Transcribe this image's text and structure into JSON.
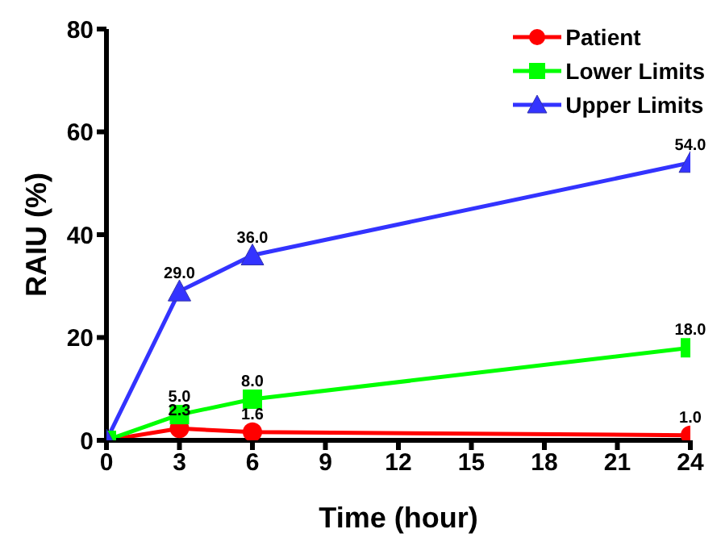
{
  "chart_data": {
    "type": "line",
    "xlabel": "Time (hour)",
    "ylabel": "RAIU (%)",
    "x": [
      0,
      3,
      6,
      24
    ],
    "xlim": [
      0,
      24
    ],
    "xticks": [
      0,
      3,
      6,
      9,
      12,
      15,
      18,
      21,
      24
    ],
    "ylim": [
      0,
      80
    ],
    "yticks": [
      0,
      20,
      40,
      60,
      80
    ],
    "grid": false,
    "legend": "top right",
    "series": [
      {
        "name": "Patient",
        "color": "#ff0000",
        "marker": "circle",
        "values": [
          0,
          2.3,
          1.6,
          1.0
        ],
        "value_labels": [
          null,
          "2.3",
          "1.6",
          "1.0"
        ]
      },
      {
        "name": "Lower Limits",
        "color": "#00ff00",
        "marker": "square",
        "values": [
          0,
          5.0,
          8.0,
          18.0
        ],
        "value_labels": [
          null,
          "5.0",
          "8.0",
          "18.0"
        ]
      },
      {
        "name": "Upper Limits",
        "color": "#3333ff",
        "marker": "triangle",
        "values": [
          0,
          29.0,
          36.0,
          54.0
        ],
        "value_labels": [
          null,
          "29.0",
          "36.0",
          "54.0"
        ]
      }
    ]
  }
}
